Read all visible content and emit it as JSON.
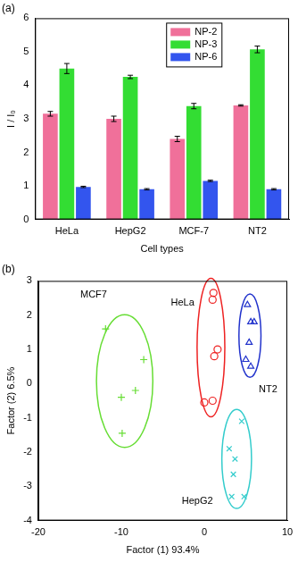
{
  "chart_data": [
    {
      "type": "bar",
      "title": "(a)",
      "categories": [
        "HeLa",
        "HepG2",
        "MCF-7",
        "NT2"
      ],
      "series": [
        {
          "name": "NP-2",
          "color": "#f0709a",
          "values": [
            3.15,
            3.0,
            2.4,
            3.4
          ],
          "errors": [
            0.07,
            0.08,
            0.08,
            0.02
          ]
        },
        {
          "name": "NP-3",
          "color": "#33dd33",
          "values": [
            4.5,
            4.25,
            3.38,
            5.07
          ],
          "errors": [
            0.15,
            0.05,
            0.08,
            0.1
          ]
        },
        {
          "name": "NP-6",
          "color": "#3355ee",
          "values": [
            0.97,
            0.9,
            1.15,
            0.9
          ],
          "errors": [
            0.02,
            0.02,
            0.02,
            0.02
          ]
        }
      ],
      "x_label": "Cell types",
      "y_label": "I / I₀",
      "ylim": [
        0,
        6
      ],
      "yticks": [
        0,
        1,
        2,
        3,
        4,
        5,
        6
      ],
      "grid": false,
      "legend": "upper right"
    },
    {
      "type": "scatter",
      "title": "(b)",
      "x_label": "Factor (1) 93.4%",
      "y_label": "Factor (2) 6.5%",
      "xlim": [
        -20,
        10
      ],
      "xticks": [
        -20,
        -10,
        0,
        10
      ],
      "ylim": [
        -4,
        3
      ],
      "yticks": [
        -4,
        -3,
        -2,
        -1,
        0,
        1,
        2,
        3
      ],
      "grid": false,
      "series": [
        {
          "name": "MCF7",
          "color": "#66dd33",
          "marker": "cross",
          "x": [
            -11.9,
            -7.3,
            -10.0,
            -8.3,
            -9.9
          ],
          "y": [
            1.6,
            0.7,
            -0.4,
            -0.2,
            -1.45
          ]
        },
        {
          "name": "HeLa",
          "color": "#ee2222",
          "marker": "circle",
          "x": [
            0.0,
            1.0,
            1.2,
            1.6,
            1.0,
            1.1
          ],
          "y": [
            -0.55,
            -0.5,
            0.8,
            1.0,
            2.45,
            2.65
          ]
        },
        {
          "name": "NT2",
          "color": "#2233cc",
          "marker": "triangle",
          "x": [
            5.2,
            5.6,
            6.0,
            5.4,
            5.0,
            5.6
          ],
          "y": [
            2.3,
            1.8,
            1.8,
            1.2,
            0.7,
            0.5
          ]
        },
        {
          "name": "HepG2",
          "color": "#33cccc",
          "marker": "x",
          "x": [
            4.5,
            3.0,
            3.7,
            3.5,
            3.3,
            4.8
          ],
          "y": [
            -1.1,
            -1.9,
            -2.2,
            -2.65,
            -3.3,
            -3.3
          ]
        }
      ]
    }
  ]
}
